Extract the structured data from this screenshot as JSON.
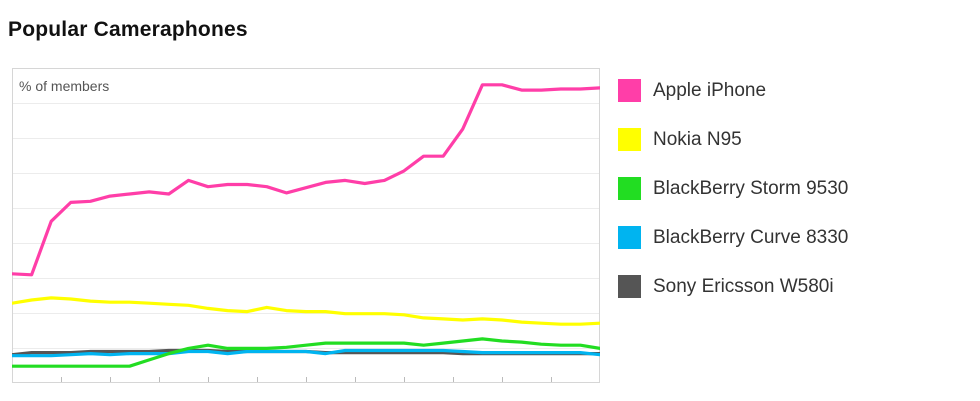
{
  "title": "Popular Cameraphones",
  "chart_data": {
    "type": "line",
    "title": "Popular Cameraphones",
    "ylabel": "% of members",
    "xlabel": "",
    "x": [
      1,
      2,
      3,
      4,
      5,
      6,
      7,
      8,
      9,
      10,
      11,
      12,
      13,
      14,
      15,
      16,
      17,
      18,
      19,
      20,
      21,
      22,
      23,
      24,
      25,
      26,
      27,
      28,
      29,
      30,
      31
    ],
    "ylim": [
      0,
      30
    ],
    "grid": true,
    "legend_position": "right",
    "series": [
      {
        "name": "Apple iPhone",
        "color": "#ff3ea8",
        "values": [
          10.4,
          10.3,
          15.4,
          17.2,
          17.3,
          17.8,
          18.0,
          18.2,
          18.0,
          19.3,
          18.7,
          18.9,
          18.9,
          18.7,
          18.1,
          18.6,
          19.1,
          19.3,
          19.0,
          19.3,
          20.2,
          21.6,
          21.6,
          24.2,
          28.4,
          28.4,
          27.9,
          27.9,
          28.0,
          28.0,
          28.1
        ]
      },
      {
        "name": "Nokia N95",
        "color": "#ffff00",
        "values": [
          7.6,
          7.9,
          8.1,
          8.0,
          7.8,
          7.7,
          7.7,
          7.6,
          7.5,
          7.4,
          7.1,
          6.9,
          6.8,
          7.2,
          6.9,
          6.8,
          6.8,
          6.6,
          6.6,
          6.6,
          6.5,
          6.2,
          6.1,
          6.0,
          6.1,
          6.0,
          5.8,
          5.7,
          5.6,
          5.6,
          5.7
        ]
      },
      {
        "name": "BlackBerry Storm 9530",
        "color": "#22dd22",
        "values": [
          1.6,
          1.6,
          1.6,
          1.6,
          1.6,
          1.6,
          1.6,
          2.2,
          2.8,
          3.3,
          3.6,
          3.3,
          3.3,
          3.3,
          3.4,
          3.6,
          3.8,
          3.8,
          3.8,
          3.8,
          3.8,
          3.6,
          3.8,
          4.0,
          4.2,
          4.0,
          3.9,
          3.7,
          3.6,
          3.6,
          3.3
        ]
      },
      {
        "name": "BlackBerry Curve 8330",
        "color": "#00b4f0",
        "values": [
          2.6,
          2.6,
          2.6,
          2.7,
          2.8,
          2.7,
          2.8,
          2.8,
          2.8,
          3.0,
          3.0,
          2.8,
          3.0,
          3.0,
          3.0,
          3.0,
          2.8,
          3.1,
          3.1,
          3.1,
          3.1,
          3.1,
          3.1,
          3.0,
          2.9,
          2.9,
          2.9,
          2.9,
          2.9,
          2.9,
          2.7
        ]
      },
      {
        "name": "Sony Ericsson W580i",
        "color": "#555555",
        "values": [
          2.7,
          2.9,
          2.9,
          2.9,
          3.0,
          3.0,
          3.0,
          3.0,
          3.1,
          3.1,
          3.1,
          3.0,
          3.0,
          3.0,
          3.0,
          3.0,
          2.9,
          2.9,
          2.9,
          2.9,
          2.9,
          2.9,
          2.9,
          2.8,
          2.8,
          2.8,
          2.8,
          2.8,
          2.8,
          2.8,
          2.8
        ]
      }
    ]
  }
}
